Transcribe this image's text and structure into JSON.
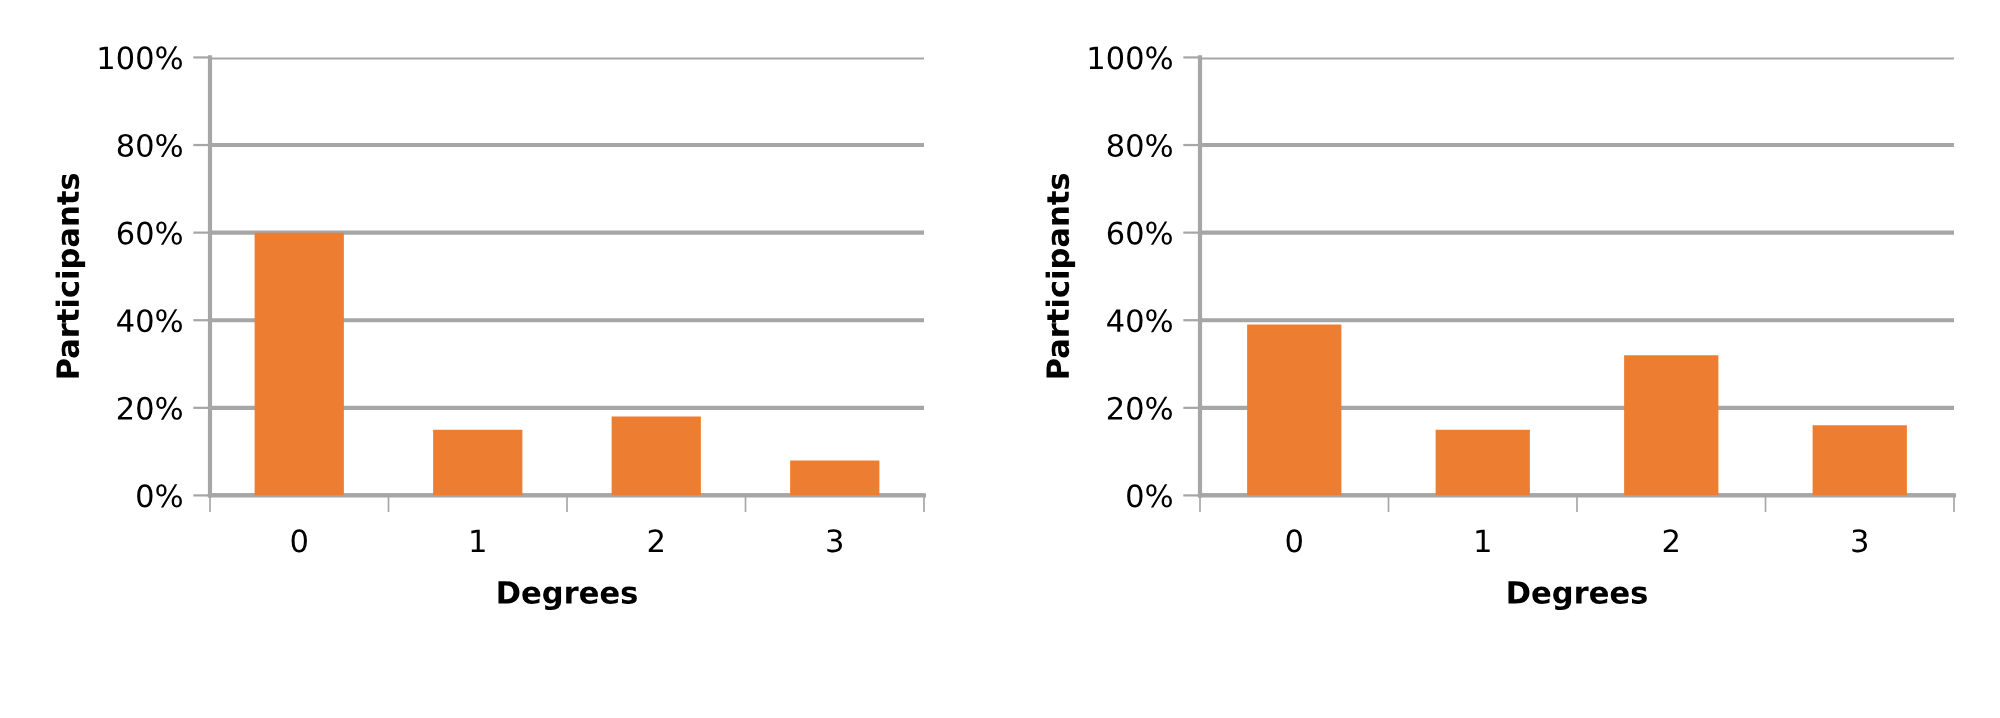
{
  "chart_data": [
    {
      "type": "bar",
      "xlabel": "Degrees",
      "ylabel": "Participants",
      "categories": [
        "0",
        "1",
        "2",
        "3"
      ],
      "values": [
        60,
        15,
        18,
        8
      ],
      "color": "#ed7d31",
      "ylim": [
        0,
        100
      ],
      "yticks": [
        {
          "value": 0,
          "label": "0%"
        },
        {
          "value": 20,
          "label": "20%"
        },
        {
          "value": 40,
          "label": "40%"
        },
        {
          "value": 60,
          "label": "60%"
        },
        {
          "value": 80,
          "label": "80%"
        },
        {
          "value": 100,
          "label": "100%"
        }
      ],
      "grid": "y"
    },
    {
      "type": "bar",
      "xlabel": "Degrees",
      "ylabel": "Participants",
      "categories": [
        "0",
        "1",
        "2",
        "3"
      ],
      "values": [
        39,
        15,
        32,
        16
      ],
      "color": "#ed7d31",
      "ylim": [
        0,
        100
      ],
      "yticks": [
        {
          "value": 0,
          "label": "0%"
        },
        {
          "value": 20,
          "label": "20%"
        },
        {
          "value": 40,
          "label": "40%"
        },
        {
          "value": 60,
          "label": "60%"
        },
        {
          "value": 80,
          "label": "80%"
        },
        {
          "value": 100,
          "label": "100%"
        }
      ],
      "grid": "y"
    }
  ]
}
